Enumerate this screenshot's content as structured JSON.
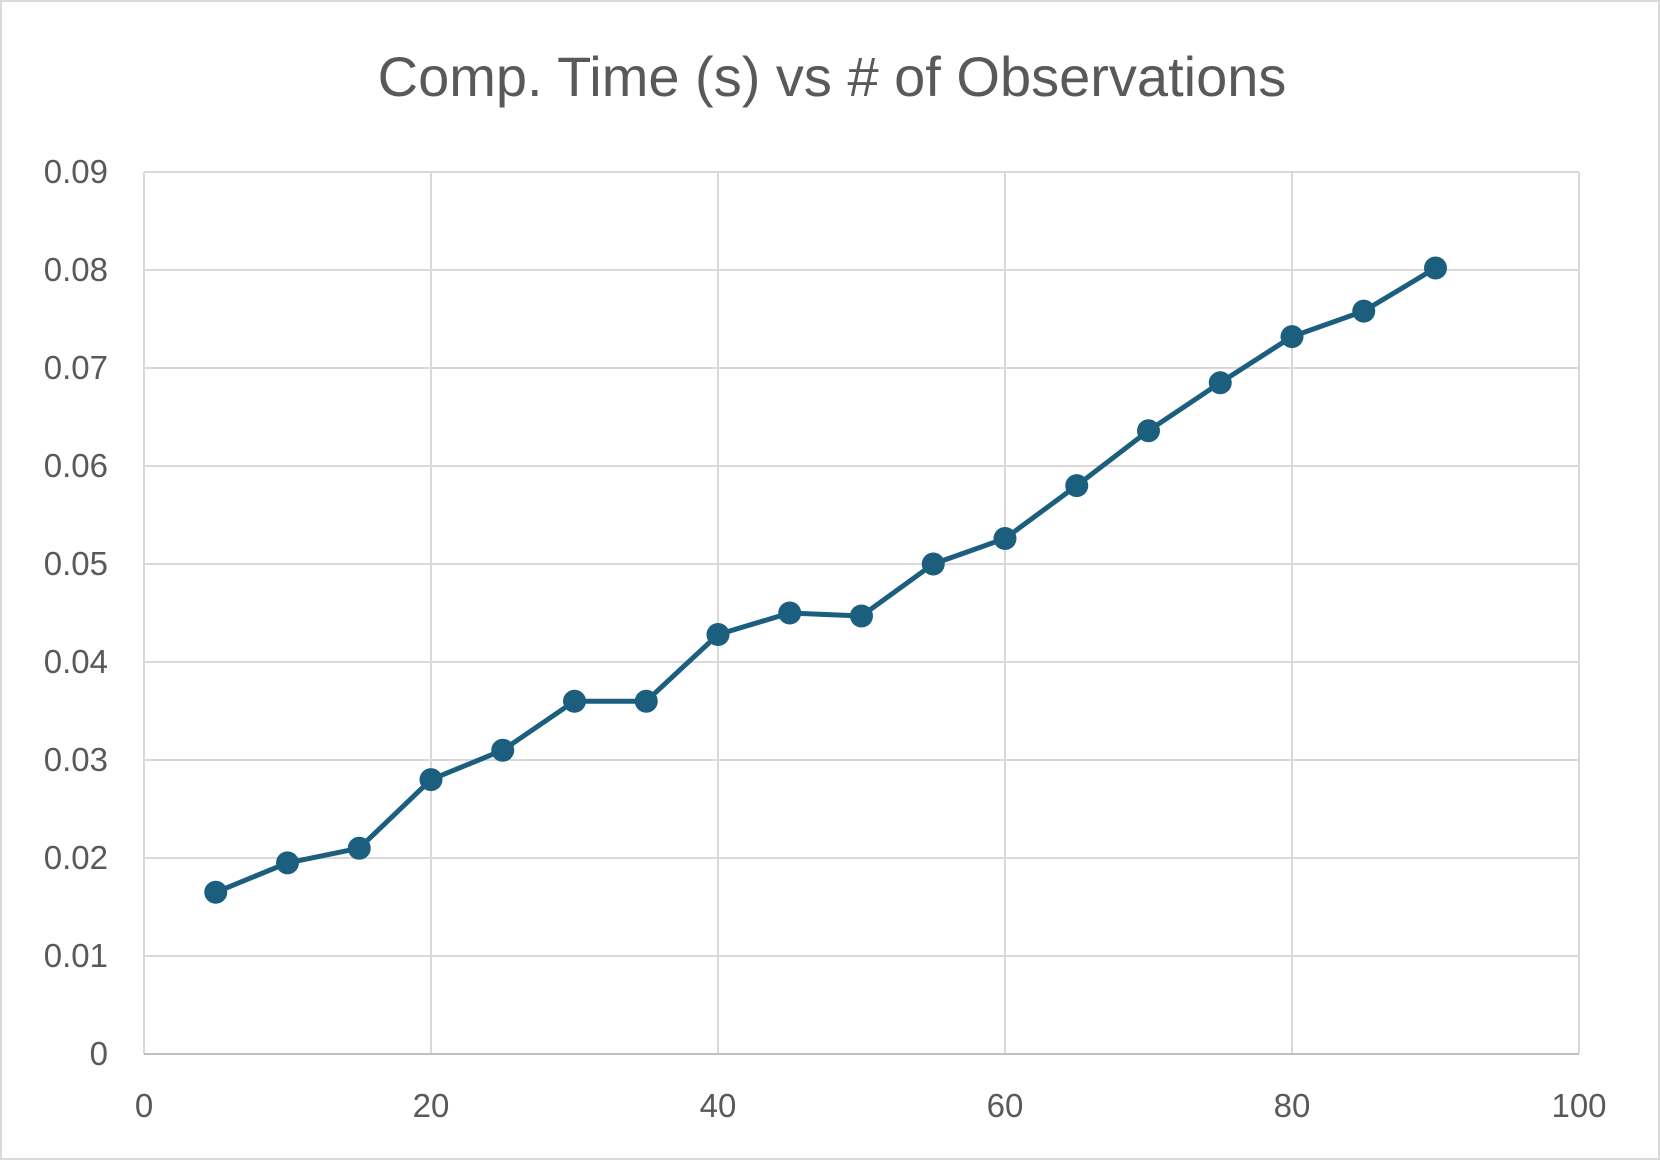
{
  "chart_data": {
    "type": "line",
    "title": "Comp. Time (s) vs # of Observations",
    "xlabel": "",
    "ylabel": "",
    "xlim": [
      0,
      100
    ],
    "ylim": [
      0,
      0.09
    ],
    "x_ticks": [
      0,
      20,
      40,
      60,
      80,
      100
    ],
    "y_ticks": [
      0,
      0.01,
      0.02,
      0.03,
      0.04,
      0.05,
      0.06,
      0.07,
      0.08,
      0.09
    ],
    "x_tick_labels": [
      "0",
      "20",
      "40",
      "60",
      "80",
      "100"
    ],
    "y_tick_labels": [
      "0",
      "0.01",
      "0.02",
      "0.03",
      "0.04",
      "0.05",
      "0.06",
      "0.07",
      "0.08",
      "0.09"
    ],
    "grid": true,
    "legend": "none",
    "series": [
      {
        "color": "#1b5e7e",
        "x": [
          5,
          10,
          15,
          20,
          25,
          30,
          35,
          40,
          45,
          50,
          55,
          60,
          65,
          70,
          75,
          80,
          85,
          90
        ],
        "y": [
          0.0165,
          0.0195,
          0.021,
          0.028,
          0.031,
          0.036,
          0.036,
          0.0428,
          0.045,
          0.0447,
          0.05,
          0.0526,
          0.058,
          0.0636,
          0.0685,
          0.0732,
          0.0758,
          0.0802
        ]
      }
    ],
    "colors": {
      "grid": "#d9d9d9",
      "text": "#595959",
      "line": "#1b5e7e"
    }
  }
}
